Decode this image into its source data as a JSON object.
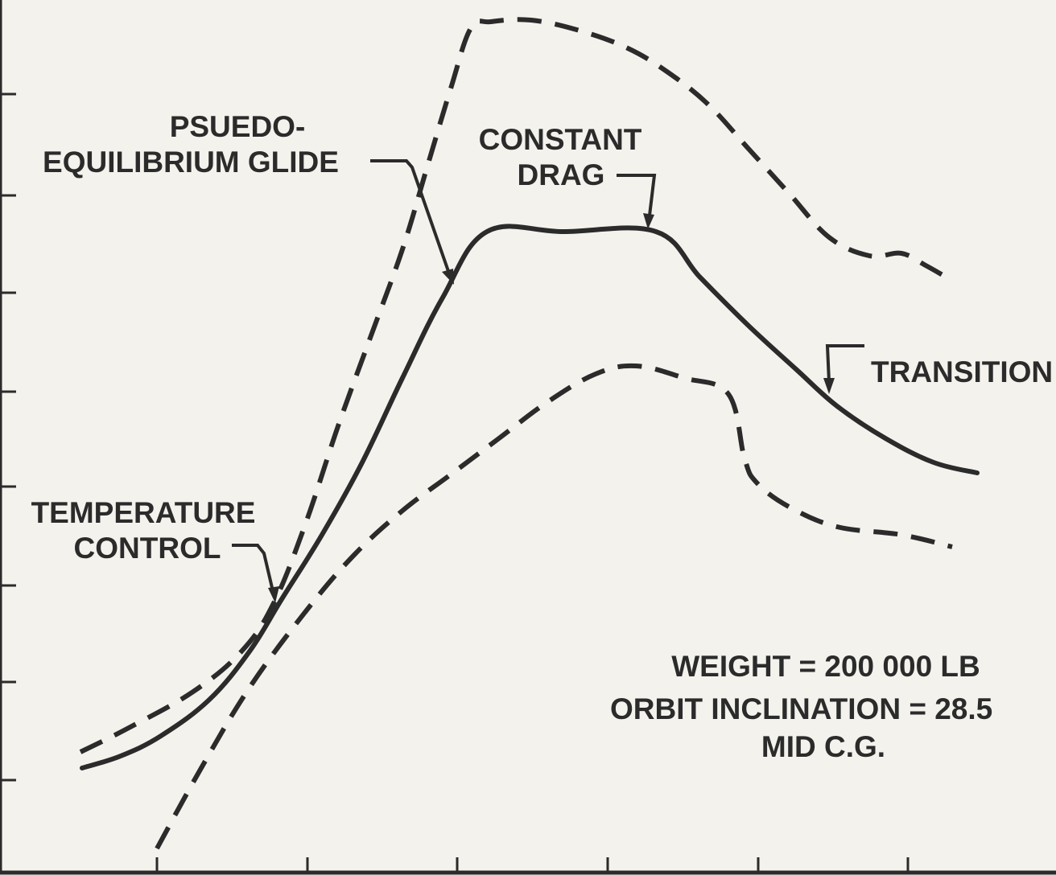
{
  "chart_data": {
    "type": "line",
    "title": "",
    "xlabel": "",
    "ylabel": "",
    "grid": false,
    "series": [
      {
        "style": "dashed",
        "points": [
          [
            100,
            935
          ],
          [
            160,
            905
          ],
          [
            240,
            860
          ],
          [
            300,
            810
          ],
          [
            340,
            750
          ],
          [
            380,
            650
          ],
          [
            420,
            530
          ],
          [
            460,
            420
          ],
          [
            500,
            310
          ],
          [
            530,
            210
          ],
          [
            560,
            110
          ],
          [
            585,
            35
          ],
          [
            610,
            27
          ],
          [
            660,
            25
          ],
          [
            720,
            38
          ],
          [
            780,
            60
          ],
          [
            830,
            90
          ],
          [
            880,
            130
          ],
          [
            930,
            185
          ],
          [
            980,
            240
          ],
          [
            1030,
            295
          ],
          [
            1080,
            318
          ],
          [
            1120,
            315
          ],
          [
            1150,
            330
          ],
          [
            1178,
            346
          ]
        ]
      },
      {
        "style": "solid",
        "points": [
          [
            102,
            955
          ],
          [
            150,
            940
          ],
          [
            200,
            915
          ],
          [
            260,
            870
          ],
          [
            310,
            810
          ],
          [
            350,
            745
          ],
          [
            400,
            665
          ],
          [
            450,
            575
          ],
          [
            500,
            470
          ],
          [
            550,
            370
          ],
          [
            605,
            288
          ],
          [
            700,
            288
          ],
          [
            815,
            288
          ],
          [
            870,
            345
          ],
          [
            930,
            405
          ],
          [
            990,
            460
          ],
          [
            1040,
            505
          ],
          [
            1100,
            545
          ],
          [
            1160,
            575
          ],
          [
            1214,
            588
          ]
        ]
      },
      {
        "style": "dashed",
        "points": [
          [
            195,
            1055
          ],
          [
            250,
            955
          ],
          [
            310,
            855
          ],
          [
            380,
            760
          ],
          [
            440,
            690
          ],
          [
            500,
            635
          ],
          [
            560,
            590
          ],
          [
            620,
            545
          ],
          [
            680,
            500
          ],
          [
            740,
            465
          ],
          [
            790,
            455
          ],
          [
            850,
            470
          ],
          [
            905,
            490
          ],
          [
            925,
            570
          ],
          [
            940,
            600
          ],
          [
            980,
            630
          ],
          [
            1040,
            655
          ],
          [
            1120,
            665
          ],
          [
            1183,
            680
          ]
        ]
      }
    ],
    "annotations": [
      {
        "label_lines": [
          "PSUEDO-",
          "EQUILIBRIUM GLIDE"
        ]
      },
      {
        "label_lines": [
          "CONSTANT",
          "DRAG"
        ]
      },
      {
        "label_lines": [
          "TRANSITION"
        ]
      },
      {
        "label_lines": [
          "TEMPERATURE",
          "CONTROL"
        ]
      }
    ],
    "notes": [
      "WEIGHT = 200 000 LB",
      "ORBIT INCLINATION = 28.5",
      "MID C.G."
    ]
  }
}
